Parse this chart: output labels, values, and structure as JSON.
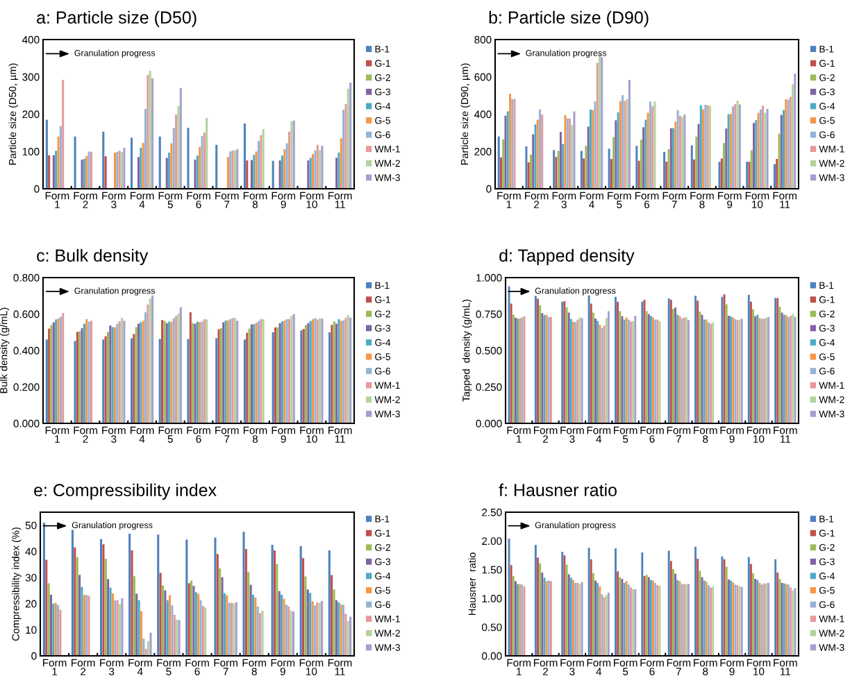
{
  "chart_data": [
    {
      "type": "bar",
      "title": "a: Particle size (D50)",
      "ylabel": "Particle size (D50, µm)",
      "categories": [
        "Form\n1",
        "Form\n2",
        "Form\n3",
        "Form\n4",
        "Form\n5",
        "Form\n6",
        "Form\n7",
        "Form\n8",
        "Form\n9",
        "Form\n10",
        "Form\n11"
      ],
      "ylim": [
        0,
        400
      ],
      "yticks": [
        0,
        100,
        200,
        300,
        400
      ],
      "grid": false,
      "legend": "right",
      "annotations": [
        "Granulation progress"
      ],
      "series": [
        {
          "name": "B-1",
          "color": "#4f81bd",
          "values": [
            185,
            140,
            153,
            137,
            140,
            163,
            118,
            175,
            75,
            null,
            null
          ]
        },
        {
          "name": "G-1",
          "color": "#c0504d",
          "values": [
            90,
            null,
            87,
            null,
            null,
            null,
            null,
            76,
            null,
            null,
            null
          ]
        },
        {
          "name": "G-2",
          "color": "#9bbb59",
          "values": [
            null,
            null,
            null,
            null,
            null,
            null,
            null,
            null,
            null,
            null,
            null
          ]
        },
        {
          "name": "G-3",
          "color": "#8064a2",
          "values": [
            90,
            78,
            null,
            85,
            83,
            78,
            null,
            77,
            76,
            76,
            83
          ]
        },
        {
          "name": "G-4",
          "color": "#4bacc6",
          "values": [
            102,
            80,
            null,
            110,
            97,
            89,
            null,
            91,
            89,
            83,
            97
          ]
        },
        {
          "name": "G-5",
          "color": "#f79646",
          "values": [
            140,
            88,
            97,
            123,
            122,
            112,
            85,
            100,
            106,
            93,
            135
          ]
        },
        {
          "name": "G-6",
          "color": "#95b3d7",
          "values": [
            168,
            100,
            99,
            214,
            163,
            141,
            100,
            128,
            122,
            103,
            212
          ]
        },
        {
          "name": "WM-1",
          "color": "#e6999b",
          "values": [
            292,
            99,
            102,
            305,
            199,
            151,
            103,
            144,
            153,
            118,
            227
          ]
        },
        {
          "name": "WM-2",
          "color": "#b3d39c",
          "values": [
            null,
            null,
            98,
            316,
            222,
            190,
            103,
            160,
            181,
            104,
            268
          ]
        },
        {
          "name": "WM-3",
          "color": "#a59fcf",
          "values": [
            null,
            null,
            110,
            296,
            270,
            null,
            106,
            null,
            183,
            115,
            285
          ]
        }
      ]
    },
    {
      "type": "bar",
      "title": "b: Particle size (D90)",
      "ylabel": "Particle size (D90, µm)",
      "categories": [
        "Form\n1",
        "Form\n2",
        "Form\n3",
        "Form\n4",
        "Form\n5",
        "Form\n6",
        "Form\n7",
        "Form\n8",
        "Form\n9",
        "Form\n10",
        "Form\n11"
      ],
      "ylim": [
        0,
        800
      ],
      "yticks": [
        0,
        200,
        400,
        600,
        800
      ],
      "grid": false,
      "legend": "right",
      "annotations": [
        "Granulation progress"
      ],
      "series": [
        {
          "name": "B-1",
          "color": "#4f81bd",
          "values": [
            280,
            228,
            207,
            203,
            215,
            230,
            198,
            233,
            145,
            145,
            132
          ]
        },
        {
          "name": "G-1",
          "color": "#c0504d",
          "values": [
            168,
            142,
            170,
            162,
            160,
            150,
            145,
            157,
            162,
            145,
            160
          ]
        },
        {
          "name": "G-2",
          "color": "#9bbb59",
          "values": [
            265,
            183,
            203,
            230,
            277,
            263,
            212,
            280,
            245,
            207,
            295
          ]
        },
        {
          "name": "G-3",
          "color": "#8064a2",
          "values": [
            392,
            292,
            305,
            333,
            367,
            330,
            325,
            348,
            323,
            353,
            396
          ]
        },
        {
          "name": "G-4",
          "color": "#4bacc6",
          "values": [
            415,
            345,
            240,
            425,
            410,
            370,
            325,
            448,
            400,
            368,
            422
          ]
        },
        {
          "name": "G-5",
          "color": "#f79646",
          "values": [
            510,
            370,
            395,
            422,
            470,
            407,
            360,
            426,
            402,
            407,
            480
          ]
        },
        {
          "name": "G-6",
          "color": "#95b3d7",
          "values": [
            480,
            425,
            377,
            468,
            502,
            468,
            422,
            450,
            442,
            425,
            477
          ]
        },
        {
          "name": "WM-1",
          "color": "#e6999b",
          "values": [
            482,
            398,
            377,
            675,
            472,
            442,
            392,
            448,
            455,
            445,
            493
          ]
        },
        {
          "name": "WM-2",
          "color": "#b3d39c",
          "values": [
            null,
            null,
            342,
            722,
            481,
            468,
            385,
            445,
            472,
            408,
            560
          ]
        },
        {
          "name": "WM-3",
          "color": "#a59fcf",
          "values": [
            null,
            null,
            415,
            706,
            584,
            null,
            398,
            null,
            452,
            428,
            617
          ]
        }
      ]
    },
    {
      "type": "bar",
      "title": "c: Bulk density",
      "ylabel": "Bulk density (g/mL)",
      "categories": [
        "Form\n1",
        "Form\n2",
        "Form\n3",
        "Form\n4",
        "Form\n5",
        "Form\n6",
        "Form\n7",
        "Form\n8",
        "Form\n9",
        "Form\n10",
        "Form\n11"
      ],
      "ylim": [
        0,
        0.8
      ],
      "yticks": [
        {
          "value": 0,
          "label": "0.000"
        },
        {
          "value": 0.2,
          "label": "0.200"
        },
        {
          "value": 0.4,
          "label": "0.400"
        },
        {
          "value": 0.6,
          "label": "0.600"
        },
        {
          "value": 0.8,
          "label": "0.800"
        }
      ],
      "grid": false,
      "legend": "right",
      "annotations": [
        "Granulation progress"
      ],
      "series": [
        {
          "name": "B-1",
          "color": "#4f81bd",
          "values": [
            0.46,
            0.452,
            0.46,
            0.467,
            0.463,
            0.463,
            0.468,
            0.46,
            0.5,
            0.51,
            0.5
          ]
        },
        {
          "name": "G-1",
          "color": "#c0504d",
          "values": [
            0.52,
            0.502,
            0.478,
            0.49,
            0.567,
            0.61,
            0.517,
            0.497,
            0.527,
            0.518,
            0.54
          ]
        },
        {
          "name": "G-2",
          "color": "#9bbb59",
          "values": [
            0.54,
            0.505,
            0.502,
            0.528,
            0.563,
            0.55,
            0.522,
            0.52,
            0.527,
            0.54,
            0.56
          ]
        },
        {
          "name": "G-3",
          "color": "#8064a2",
          "values": [
            0.555,
            0.522,
            0.537,
            0.547,
            0.55,
            0.547,
            0.555,
            0.543,
            0.55,
            0.55,
            0.547
          ]
        },
        {
          "name": "G-4",
          "color": "#4bacc6",
          "values": [
            0.57,
            0.547,
            0.528,
            0.555,
            0.558,
            0.558,
            0.565,
            0.545,
            0.56,
            0.562,
            0.572
          ]
        },
        {
          "name": "G-5",
          "color": "#f79646",
          "values": [
            0.575,
            0.572,
            0.528,
            0.563,
            0.558,
            0.555,
            0.565,
            0.552,
            0.565,
            0.572,
            0.563
          ]
        },
        {
          "name": "G-6",
          "color": "#95b3d7",
          "values": [
            0.585,
            0.558,
            0.547,
            0.61,
            0.577,
            0.558,
            0.572,
            0.562,
            0.572,
            0.578,
            0.565
          ]
        },
        {
          "name": "WM-1",
          "color": "#e6999b",
          "values": [
            0.605,
            0.563,
            0.56,
            0.652,
            0.59,
            0.572,
            0.578,
            0.572,
            0.572,
            0.57,
            0.58
          ]
        },
        {
          "name": "WM-2",
          "color": "#b3d39c",
          "values": [
            null,
            null,
            0.58,
            0.685,
            0.603,
            0.57,
            0.58,
            0.572,
            0.59,
            0.577,
            0.595
          ]
        },
        {
          "name": "WM-3",
          "color": "#a59fcf",
          "values": [
            null,
            null,
            0.563,
            0.702,
            0.637,
            null,
            0.563,
            null,
            0.6,
            0.575,
            0.58
          ]
        }
      ]
    },
    {
      "type": "bar",
      "title": "d: Tapped density",
      "ylabel": "Tapped  density (g/mL)",
      "categories": [
        "Form\n1",
        "Form\n2",
        "Form\n3",
        "Form\n4",
        "Form\n5",
        "Form\n6",
        "Form\n7",
        "Form\n8",
        "Form\n9",
        "Form\n10",
        "Form\n11"
      ],
      "ylim": [
        0,
        1.0
      ],
      "yticks": [
        {
          "value": 0,
          "label": "0.000"
        },
        {
          "value": 0.25,
          "label": "0.250"
        },
        {
          "value": 0.5,
          "label": "0.500"
        },
        {
          "value": 0.75,
          "label": "0.750"
        },
        {
          "value": 1.0,
          "label": "1.000"
        }
      ],
      "grid": false,
      "legend": "right",
      "annotations": [
        "Granulation progress"
      ],
      "series": [
        {
          "name": "B-1",
          "color": "#4f81bd",
          "values": [
            0.94,
            0.875,
            0.835,
            0.878,
            0.868,
            0.835,
            0.857,
            0.875,
            0.868,
            0.882,
            0.86
          ]
        },
        {
          "name": "G-1",
          "color": "#c0504d",
          "values": [
            0.822,
            0.855,
            0.838,
            0.822,
            0.835,
            0.848,
            0.848,
            0.842,
            0.885,
            0.835,
            0.86
          ]
        },
        {
          "name": "G-2",
          "color": "#9bbb59",
          "values": [
            0.745,
            0.81,
            0.797,
            0.76,
            0.77,
            0.77,
            0.785,
            0.767,
            0.817,
            0.782,
            0.8
          ]
        },
        {
          "name": "G-3",
          "color": "#8064a2",
          "values": [
            0.725,
            0.757,
            0.76,
            0.72,
            0.735,
            0.75,
            0.795,
            0.745,
            0.738,
            0.735,
            0.76
          ]
        },
        {
          "name": "G-4",
          "color": "#4bacc6",
          "values": [
            0.718,
            0.743,
            0.717,
            0.703,
            0.712,
            0.738,
            0.745,
            0.712,
            0.735,
            0.745,
            0.745
          ]
        },
        {
          "name": "G-5",
          "color": "#f79646",
          "values": [
            0.72,
            0.745,
            0.697,
            0.677,
            0.727,
            0.727,
            0.737,
            0.712,
            0.727,
            0.722,
            0.742
          ]
        },
        {
          "name": "G-6",
          "color": "#95b3d7",
          "values": [
            0.727,
            0.73,
            0.695,
            0.655,
            0.712,
            0.712,
            0.72,
            0.693,
            0.715,
            0.718,
            0.728
          ]
        },
        {
          "name": "WM-1",
          "color": "#e6999b",
          "values": [
            0.735,
            0.73,
            0.712,
            0.672,
            0.698,
            0.712,
            0.727,
            0.683,
            0.708,
            0.718,
            0.738
          ]
        },
        {
          "name": "WM-2",
          "color": "#b3d39c",
          "values": [
            null,
            null,
            0.727,
            0.723,
            0.702,
            0.7,
            0.727,
            0.693,
            0.712,
            0.725,
            0.75
          ]
        },
        {
          "name": "WM-3",
          "color": "#a59fcf",
          "values": [
            null,
            null,
            0.723,
            0.77,
            0.738,
            null,
            0.708,
            null,
            0.718,
            0.73,
            0.73
          ]
        }
      ]
    },
    {
      "type": "bar",
      "title": "e: Compressibility index",
      "ylabel": "Compressibility index (%)",
      "categories": [
        "Form\n1",
        "Form\n2",
        "Form\n3",
        "Form\n4",
        "Form\n5",
        "Form\n6",
        "Form\n7",
        "Form\n8",
        "Form\n9",
        "Form\n10",
        "Form\n11"
      ],
      "ylim": [
        0,
        55
      ],
      "yticks": [
        0,
        10,
        20,
        30,
        40,
        50
      ],
      "grid": false,
      "legend": "right",
      "annotations": [
        "Granulation progress"
      ],
      "series": [
        {
          "name": "B-1",
          "color": "#4f81bd",
          "values": [
            51.0,
            48.2,
            44.7,
            46.8,
            46.4,
            44.5,
            45.3,
            47.5,
            42.5,
            42.0,
            40.4
          ]
        },
        {
          "name": "G-1",
          "color": "#c0504d",
          "values": [
            36.8,
            41.5,
            42.7,
            40.4,
            31.8,
            27.8,
            39.0,
            40.9,
            40.4,
            37.4,
            30.9
          ]
        },
        {
          "name": "G-2",
          "color": "#9bbb59",
          "values": [
            27.8,
            37.8,
            37.2,
            30.5,
            27.0,
            28.8,
            33.5,
            32.1,
            35.2,
            30.4,
            25.4
          ]
        },
        {
          "name": "G-3",
          "color": "#8064a2",
          "values": [
            23.4,
            31.0,
            29.4,
            23.8,
            25.1,
            26.8,
            30.1,
            27.2,
            24.8,
            25.4,
            21.3
          ]
        },
        {
          "name": "G-4",
          "color": "#4bacc6",
          "values": [
            20.0,
            26.4,
            26.1,
            21.3,
            21.3,
            24.4,
            24.0,
            23.4,
            23.4,
            24.1,
            20.5
          ]
        },
        {
          "name": "G-5",
          "color": "#f79646",
          "values": [
            20.3,
            23.3,
            23.9,
            17.1,
            23.2,
            23.8,
            23.2,
            22.3,
            21.9,
            20.9,
            19.7
          ]
        },
        {
          "name": "G-6",
          "color": "#95b3d7",
          "values": [
            19.5,
            23.3,
            21.3,
            6.6,
            19.3,
            21.3,
            20.3,
            18.9,
            19.6,
            19.3,
            19.5
          ]
        },
        {
          "name": "WM-1",
          "color": "#e6999b",
          "values": [
            17.7,
            23.0,
            21.3,
            2.7,
            15.7,
            19.1,
            20.3,
            16.4,
            18.9,
            20.4,
            16.1
          ]
        },
        {
          "name": "WM-2",
          "color": "#b3d39c",
          "values": [
            null,
            null,
            19.8,
            5.6,
            13.9,
            18.5,
            20.1,
            17.3,
            17.3,
            20.3,
            13.3
          ]
        },
        {
          "name": "WM-3",
          "color": "#a59fcf",
          "values": [
            null,
            null,
            22.1,
            8.9,
            13.7,
            null,
            20.5,
            null,
            17.0,
            21.0,
            15.0
          ]
        }
      ]
    },
    {
      "type": "bar",
      "title": "f: Hausner ratio",
      "ylabel": "Hausner  ratio",
      "categories": [
        "Form\n1",
        "Form\n2",
        "Form\n3",
        "Form\n4",
        "Form\n5",
        "Form\n6",
        "Form\n7",
        "Form\n8",
        "Form\n9",
        "Form\n10",
        "Form\n11"
      ],
      "ylim": [
        0,
        2.5
      ],
      "yticks": [
        {
          "value": 0,
          "label": "0.00"
        },
        {
          "value": 0.5,
          "label": "0.50"
        },
        {
          "value": 1.0,
          "label": "1.00"
        },
        {
          "value": 1.5,
          "label": "1.50"
        },
        {
          "value": 2.0,
          "label": "2.00"
        },
        {
          "value": 2.5,
          "label": "2.50"
        }
      ],
      "grid": false,
      "legend": "right",
      "annotations": [
        "Granulation progress"
      ],
      "series": [
        {
          "name": "B-1",
          "color": "#4f81bd",
          "values": [
            2.04,
            1.93,
            1.81,
            1.88,
            1.87,
            1.8,
            1.83,
            1.9,
            1.73,
            1.72,
            1.68
          ]
        },
        {
          "name": "G-1",
          "color": "#c0504d",
          "values": [
            1.58,
            1.71,
            1.75,
            1.68,
            1.47,
            1.39,
            1.65,
            1.69,
            1.68,
            1.6,
            1.45
          ]
        },
        {
          "name": "G-2",
          "color": "#9bbb59",
          "values": [
            1.39,
            1.61,
            1.59,
            1.44,
            1.37,
            1.41,
            1.51,
            1.48,
            1.55,
            1.44,
            1.34
          ]
        },
        {
          "name": "G-3",
          "color": "#8064a2",
          "values": [
            1.3,
            1.45,
            1.42,
            1.31,
            1.34,
            1.37,
            1.43,
            1.37,
            1.33,
            1.34,
            1.27
          ]
        },
        {
          "name": "G-4",
          "color": "#4bacc6",
          "values": [
            1.25,
            1.36,
            1.36,
            1.27,
            1.27,
            1.32,
            1.32,
            1.31,
            1.31,
            1.32,
            1.26
          ]
        },
        {
          "name": "G-5",
          "color": "#f79646",
          "values": [
            1.25,
            1.3,
            1.32,
            1.21,
            1.3,
            1.31,
            1.3,
            1.29,
            1.28,
            1.27,
            1.25
          ]
        },
        {
          "name": "G-6",
          "color": "#95b3d7",
          "values": [
            1.24,
            1.31,
            1.27,
            1.07,
            1.24,
            1.27,
            1.25,
            1.23,
            1.24,
            1.24,
            1.24
          ]
        },
        {
          "name": "WM-1",
          "color": "#e6999b",
          "values": [
            1.21,
            1.3,
            1.27,
            1.02,
            1.19,
            1.23,
            1.25,
            1.19,
            1.23,
            1.26,
            1.19
          ]
        },
        {
          "name": "WM-2",
          "color": "#b3d39c",
          "values": [
            null,
            null,
            1.25,
            1.06,
            1.16,
            1.22,
            1.25,
            1.21,
            1.21,
            1.26,
            1.14
          ]
        },
        {
          "name": "WM-3",
          "color": "#a59fcf",
          "values": [
            null,
            null,
            1.28,
            1.1,
            1.16,
            null,
            1.25,
            null,
            1.2,
            1.27,
            1.18
          ]
        }
      ]
    }
  ]
}
